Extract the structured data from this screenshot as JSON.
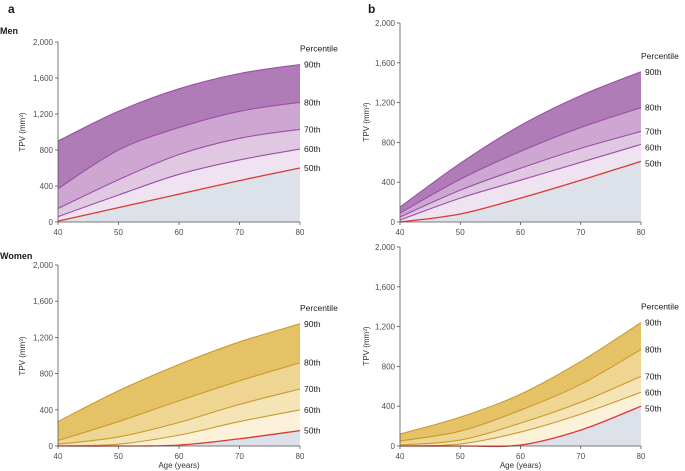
{
  "figure": {
    "panel_letters": [
      "a",
      "b"
    ],
    "row_labels": [
      "Men",
      "Women"
    ],
    "percentile_title": "Percentile",
    "colors": {
      "men": {
        "band90": "#b07cb8",
        "band80": "#cda6d1",
        "band70": "#e0c8e3",
        "band60": "#efe3f1",
        "line": "#9b4fa6"
      },
      "women": {
        "band90": "#e6c267",
        "band80": "#efd592",
        "band70": "#f5e4b6",
        "band60": "#fbf2d9",
        "line": "#c99a2e"
      },
      "base": "#dce1ea",
      "p50_line": "#d93a35",
      "axis": "#555555"
    }
  },
  "chart_data": [
    {
      "id": "men-a",
      "type": "area",
      "panel": "a",
      "row": "Men",
      "title": "",
      "xlabel": "",
      "ylabel": "TPV (mm³)",
      "xlim": [
        40,
        80
      ],
      "ylim": [
        0,
        2000
      ],
      "x_ticks": [
        40,
        50,
        60,
        70,
        80
      ],
      "y_ticks": [
        0,
        400,
        800,
        1200,
        1600,
        2000
      ],
      "x_tick_labels": [
        "40",
        "50",
        "60",
        "70",
        "80"
      ],
      "y_tick_labels": [
        "0",
        "400",
        "800",
        "1,200",
        "1,600",
        "2,000"
      ],
      "x": [
        40,
        50,
        60,
        70,
        80
      ],
      "series": [
        {
          "name": "90th",
          "values": [
            900,
            1230,
            1480,
            1650,
            1750
          ]
        },
        {
          "name": "80th",
          "values": [
            370,
            800,
            1050,
            1230,
            1330
          ]
        },
        {
          "name": "70th",
          "values": [
            150,
            470,
            750,
            930,
            1030
          ]
        },
        {
          "name": "60th",
          "values": [
            60,
            300,
            530,
            690,
            810
          ]
        },
        {
          "name": "50th",
          "values": [
            10,
            160,
            310,
            460,
            600
          ]
        }
      ]
    },
    {
      "id": "men-b",
      "type": "area",
      "panel": "b",
      "row": "Men",
      "title": "",
      "xlabel": "",
      "ylabel": "TPV (mm³)",
      "xlim": [
        40,
        80
      ],
      "ylim": [
        0,
        2000
      ],
      "x_ticks": [
        40,
        50,
        60,
        70,
        80
      ],
      "y_ticks": [
        0,
        400,
        800,
        1200,
        1600,
        2000
      ],
      "x_tick_labels": [
        "40",
        "50",
        "60",
        "70",
        "80"
      ],
      "y_tick_labels": [
        "0",
        "400",
        "800",
        "1,200",
        "1,600",
        "2,000"
      ],
      "x": [
        40,
        50,
        60,
        70,
        80
      ],
      "series": [
        {
          "name": "90th",
          "values": [
            150,
            590,
            970,
            1270,
            1510
          ]
        },
        {
          "name": "80th",
          "values": [
            90,
            430,
            710,
            950,
            1150
          ]
        },
        {
          "name": "70th",
          "values": [
            50,
            320,
            540,
            740,
            910
          ]
        },
        {
          "name": "60th",
          "values": [
            20,
            240,
            420,
            600,
            780
          ]
        },
        {
          "name": "50th",
          "values": [
            0,
            80,
            240,
            420,
            610
          ]
        }
      ]
    },
    {
      "id": "women-a",
      "type": "area",
      "panel": "a",
      "row": "Women",
      "title": "",
      "xlabel": "Age (years)",
      "ylabel": "TPV (mm³)",
      "xlim": [
        40,
        80
      ],
      "ylim": [
        0,
        2000
      ],
      "x_ticks": [
        40,
        50,
        60,
        70,
        80
      ],
      "y_ticks": [
        0,
        400,
        800,
        1200,
        1600,
        2000
      ],
      "x_tick_labels": [
        "40",
        "50",
        "60",
        "70",
        "80"
      ],
      "y_tick_labels": [
        "0",
        "400",
        "800",
        "1,200",
        "1,600",
        "2,000"
      ],
      "x": [
        40,
        50,
        60,
        70,
        80
      ],
      "series": [
        {
          "name": "90th",
          "values": [
            270,
            610,
            900,
            1150,
            1350
          ]
        },
        {
          "name": "80th",
          "values": [
            60,
            270,
            500,
            720,
            920
          ]
        },
        {
          "name": "70th",
          "values": [
            20,
            100,
            260,
            460,
            630
          ]
        },
        {
          "name": "60th",
          "values": [
            0,
            20,
            120,
            270,
            400
          ]
        },
        {
          "name": "50th",
          "values": [
            0,
            0,
            10,
            80,
            170
          ]
        }
      ]
    },
    {
      "id": "women-b",
      "type": "area",
      "panel": "b",
      "row": "Women",
      "title": "",
      "xlabel": "Age (years)",
      "ylabel": "TPV (mm³)",
      "xlim": [
        40,
        80
      ],
      "ylim": [
        0,
        2000
      ],
      "x_ticks": [
        40,
        50,
        60,
        70,
        80
      ],
      "y_ticks": [
        0,
        400,
        800,
        1200,
        1600,
        2000
      ],
      "x_tick_labels": [
        "40",
        "50",
        "60",
        "70",
        "80"
      ],
      "y_tick_labels": [
        "0",
        "400",
        "800",
        "1,200",
        "1,600",
        "2,000"
      ],
      "x": [
        40,
        50,
        60,
        70,
        80
      ],
      "series": [
        {
          "name": "90th",
          "values": [
            120,
            290,
            520,
            850,
            1240
          ]
        },
        {
          "name": "80th",
          "values": [
            50,
            150,
            360,
            620,
            970
          ]
        },
        {
          "name": "70th",
          "values": [
            10,
            60,
            230,
            440,
            700
          ]
        },
        {
          "name": "60th",
          "values": [
            0,
            20,
            140,
            320,
            540
          ]
        },
        {
          "name": "50th",
          "values": [
            0,
            0,
            10,
            160,
            400
          ]
        }
      ]
    }
  ]
}
